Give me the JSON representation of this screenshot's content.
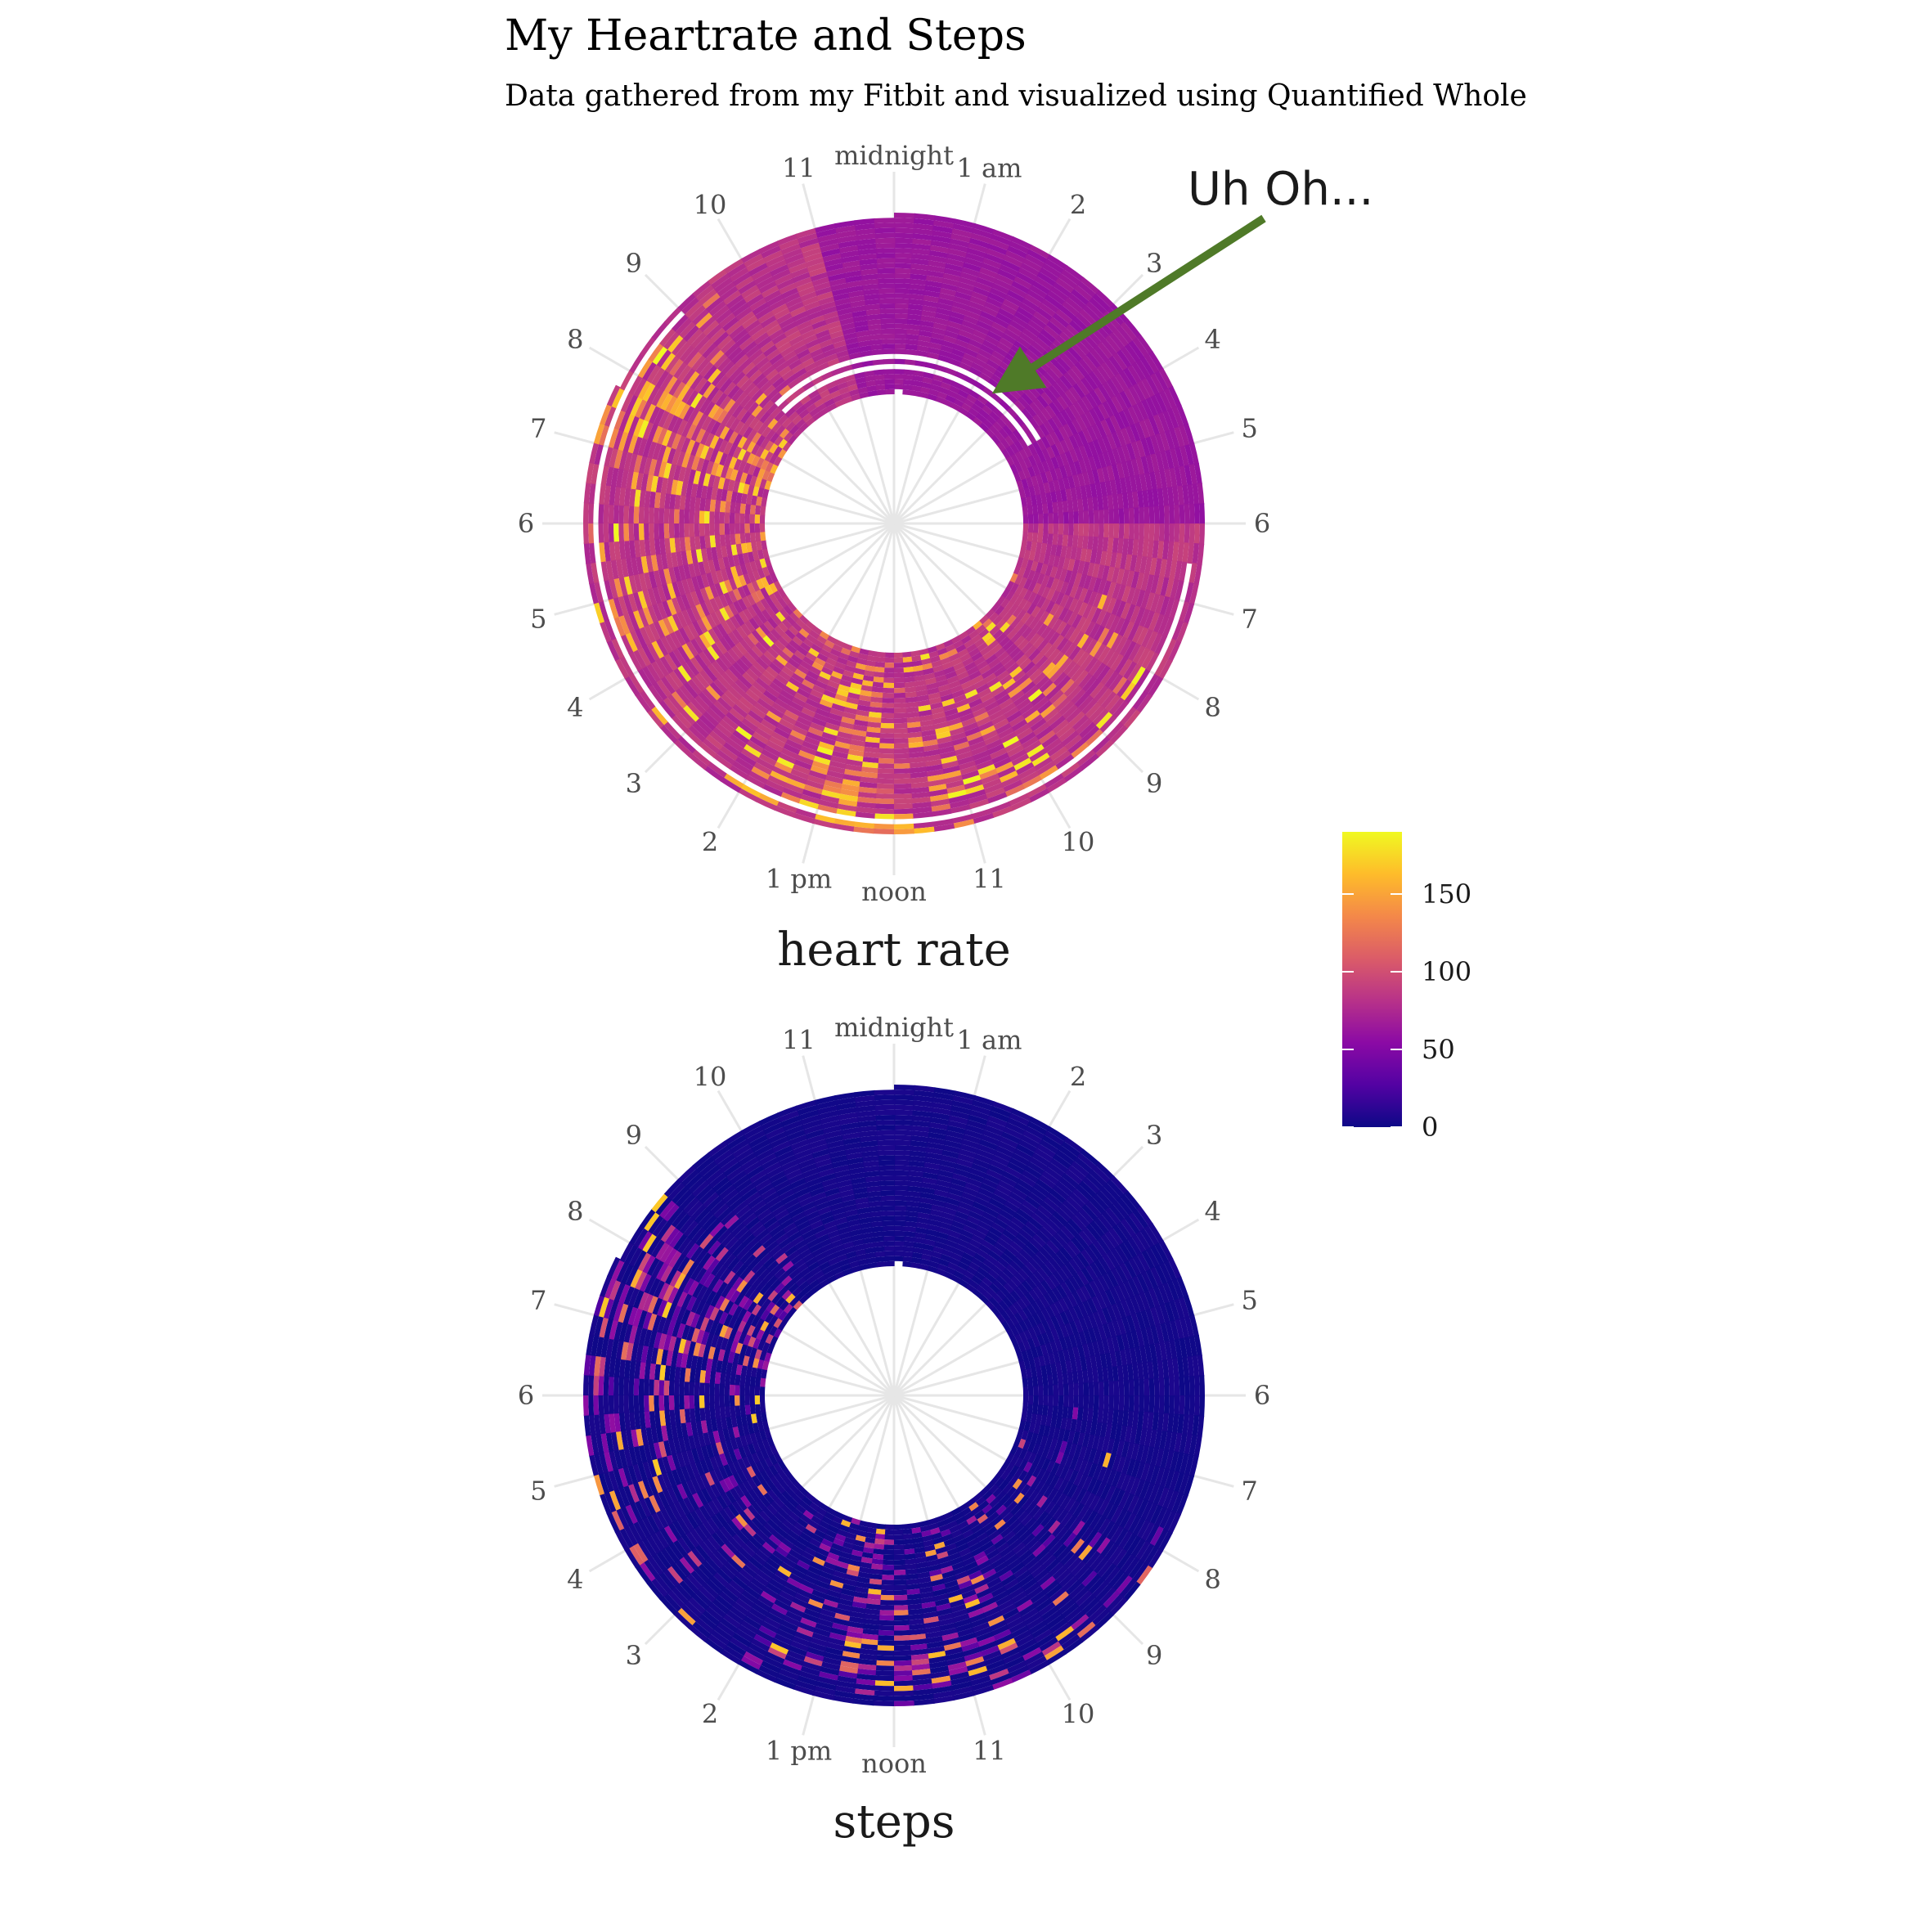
{
  "title": "My Heartrate and Steps",
  "subtitle": "Data gathered from my Fitbit and visualized using Quantified Whole",
  "annotation": {
    "text": "Uh Oh...",
    "arrow_color": "#4f7a28"
  },
  "hour_labels": [
    "midnight",
    "1 am",
    "2",
    "3",
    "4",
    "5",
    "6",
    "7",
    "8",
    "9",
    "10",
    "11",
    "noon",
    "1 pm",
    "2",
    "3",
    "4",
    "5",
    "6",
    "7",
    "8",
    "9",
    "10",
    "11"
  ],
  "legend": {
    "ticks": [
      "0",
      "50",
      "100",
      "150"
    ],
    "tick_values": [
      0,
      50,
      100,
      150
    ],
    "min": 0,
    "max": 190,
    "colors": [
      "#0d0887",
      "#5302a3",
      "#8b0aa5",
      "#b83289",
      "#db5c68",
      "#f48849",
      "#febc2a",
      "#f0f921"
    ]
  },
  "chart_data": [
    {
      "type": "heatmap",
      "coord": "polar",
      "facet": "heart rate",
      "theta": "hour of day (0-24)",
      "radius": "day index",
      "fill_scale": "plasma, 0-190",
      "summary": {
        "typical_sleep_hours_value": 60,
        "typical_day_value": 85,
        "peak_value": 180,
        "active_peak_hours": "7-8 pm and around noon"
      }
    },
    {
      "type": "heatmap",
      "coord": "polar",
      "facet": "steps",
      "theta": "hour of day (0-24)",
      "radius": "day index",
      "fill_scale": "plasma, 0-190",
      "summary": {
        "typical_value": 0,
        "peak_value": 170,
        "active_peak_hours": "7-8 pm and around noon"
      }
    }
  ]
}
